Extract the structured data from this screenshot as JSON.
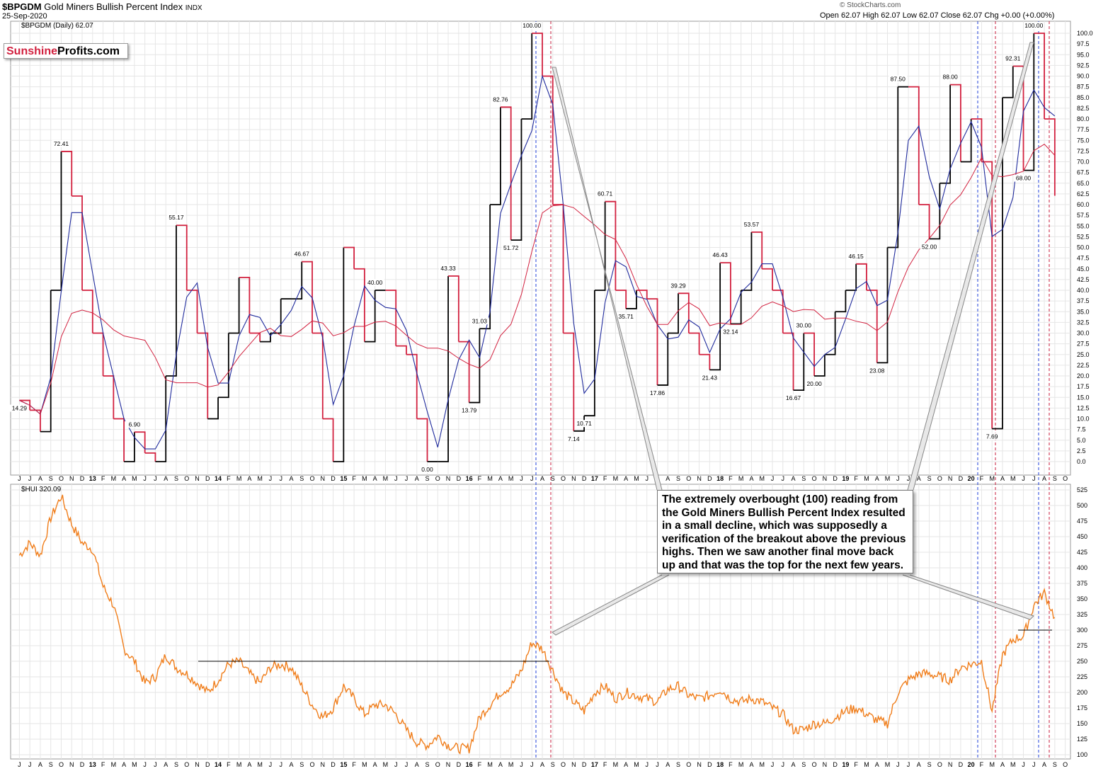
{
  "header": {
    "symbol": "$BPGDM",
    "name": "Gold Miners Bullish Percent Index",
    "exchange": "INDX",
    "date": "25-Sep-2020",
    "ohlc": "Open 62.07  High 62.07  Low 62.07  Close 62.07  Chg +0.00 (+0.00%)",
    "watermark": "© StockCharts.com",
    "upper_legend": "$BPGDM (Daily) 62.07",
    "lower_legend": "$HUI 320.09"
  },
  "logo": {
    "part1": "Sunshine",
    "part2": "Profits.com"
  },
  "callout": {
    "text": "The extremely overbought (100) reading from the Gold Miners Bullish Percent Index resulted in a small decline, which was supposedly a verification of the breakout above the previous highs. Then we saw another final move back up and that was the top for the next few years."
  },
  "colors": {
    "rising": "#000000",
    "falling": "#d2213f",
    "ma_short": "#1f2a9c",
    "ma_long": "#d2213f",
    "hui": "#f07d1a",
    "vline_blue": "#1f3fd8",
    "vline_red": "#c81e3c"
  },
  "axis": {
    "months": [
      "J",
      "J",
      "A",
      "S",
      "O",
      "N",
      "D",
      "13",
      "F",
      "M",
      "A",
      "M",
      "J",
      "J",
      "A",
      "S",
      "O",
      "N",
      "D",
      "14",
      "F",
      "M",
      "A",
      "M",
      "J",
      "J",
      "A",
      "S",
      "O",
      "N",
      "D",
      "15",
      "F",
      "M",
      "A",
      "M",
      "J",
      "J",
      "A",
      "S",
      "O",
      "N",
      "D",
      "16",
      "F",
      "M",
      "A",
      "M",
      "J",
      "J",
      "A",
      "S",
      "O",
      "N",
      "D",
      "17",
      "F",
      "M",
      "A",
      "M",
      "J",
      "J",
      "A",
      "S",
      "O",
      "N",
      "D",
      "18",
      "F",
      "M",
      "A",
      "M",
      "J",
      "J",
      "A",
      "S",
      "O",
      "N",
      "D",
      "19",
      "F",
      "M",
      "A",
      "M",
      "J",
      "J",
      "A",
      "S",
      "O",
      "N",
      "D",
      "20",
      "F",
      "M",
      "A",
      "M",
      "J",
      "J",
      "A",
      "S",
      "O"
    ],
    "upper_ticks": [
      "0.0",
      "2.5",
      "5.0",
      "7.5",
      "10.0",
      "12.5",
      "15.0",
      "17.5",
      "20.0",
      "22.5",
      "25.0",
      "27.5",
      "30.0",
      "32.5",
      "35.0",
      "37.5",
      "40.0",
      "42.5",
      "45.0",
      "47.5",
      "50.0",
      "52.5",
      "55.0",
      "57.5",
      "60.0",
      "62.5",
      "65.0",
      "67.5",
      "70.0",
      "72.5",
      "75.0",
      "77.5",
      "80.0",
      "82.5",
      "85.0",
      "87.5",
      "90.0",
      "92.5",
      "95.0",
      "97.5",
      "100.0"
    ],
    "lower_ticks": [
      "100",
      "125",
      "150",
      "175",
      "200",
      "225",
      "250",
      "275",
      "300",
      "325",
      "350",
      "375",
      "400",
      "425",
      "450",
      "475",
      "500",
      "525"
    ]
  },
  "chart_data": [
    {
      "type": "line",
      "title": "$BPGDM Gold Miners Bullish Percent Index",
      "ylim": [
        0,
        100
      ],
      "x_start": "2012-06",
      "x_end": "2020-09-25",
      "series": [
        {
          "name": "$BPGDM (Daily)",
          "points": [
            [
              "2012-06",
              14.29
            ],
            [
              "2012-07",
              12
            ],
            [
              "2012-08",
              7
            ],
            [
              "2012-09",
              40
            ],
            [
              "2012-10",
              72.41
            ],
            [
              "2012-11",
              62
            ],
            [
              "2012-12",
              40
            ],
            [
              "2013-01",
              30
            ],
            [
              "2013-02",
              20
            ],
            [
              "2013-03",
              10
            ],
            [
              "2013-04",
              0
            ],
            [
              "2013-05",
              6.9
            ],
            [
              "2013-06",
              2
            ],
            [
              "2013-07",
              0
            ],
            [
              "2013-08",
              20
            ],
            [
              "2013-09",
              55.17
            ],
            [
              "2013-10",
              40
            ],
            [
              "2013-11",
              30
            ],
            [
              "2013-12",
              10
            ],
            [
              "2014-01",
              15
            ],
            [
              "2014-02",
              30
            ],
            [
              "2014-03",
              43
            ],
            [
              "2014-04",
              30
            ],
            [
              "2014-05",
              28
            ],
            [
              "2014-06",
              30
            ],
            [
              "2014-07",
              38
            ],
            [
              "2014-08",
              38
            ],
            [
              "2014-09",
              46.67
            ],
            [
              "2014-10",
              30
            ],
            [
              "2014-11",
              10
            ],
            [
              "2014-12",
              0
            ],
            [
              "2015-01",
              50
            ],
            [
              "2015-02",
              45
            ],
            [
              "2015-03",
              28
            ],
            [
              "2015-04",
              40
            ],
            [
              "2015-05",
              40
            ],
            [
              "2015-06",
              27
            ],
            [
              "2015-07",
              25
            ],
            [
              "2015-08",
              10
            ],
            [
              "2015-09",
              0
            ],
            [
              "2015-10",
              0
            ],
            [
              "2015-11",
              43.33
            ],
            [
              "2015-12",
              28
            ],
            [
              "2016-01",
              13.79
            ],
            [
              "2016-02",
              31.03
            ],
            [
              "2016-03",
              60
            ],
            [
              "2016-04",
              82.76
            ],
            [
              "2016-05",
              51.72
            ],
            [
              "2016-06",
              80
            ],
            [
              "2016-07",
              100
            ],
            [
              "2016-08",
              90
            ],
            [
              "2016-09",
              60
            ],
            [
              "2016-10",
              30
            ],
            [
              "2016-11",
              7.14
            ],
            [
              "2016-12",
              10.71
            ],
            [
              "2017-01",
              40
            ],
            [
              "2017-02",
              60.71
            ],
            [
              "2017-03",
              40
            ],
            [
              "2017-04",
              35.71
            ],
            [
              "2017-05",
              40
            ],
            [
              "2017-06",
              38
            ],
            [
              "2017-07",
              17.86
            ],
            [
              "2017-08",
              30
            ],
            [
              "2017-09",
              39.29
            ],
            [
              "2017-10",
              30
            ],
            [
              "2017-11",
              25
            ],
            [
              "2017-12",
              21.43
            ],
            [
              "2018-01",
              46.43
            ],
            [
              "2018-02",
              32.14
            ],
            [
              "2018-03",
              40
            ],
            [
              "2018-04",
              53.57
            ],
            [
              "2018-05",
              45
            ],
            [
              "2018-06",
              40
            ],
            [
              "2018-07",
              30
            ],
            [
              "2018-08",
              16.67
            ],
            [
              "2018-09",
              30
            ],
            [
              "2018-10",
              20
            ],
            [
              "2018-11",
              25
            ],
            [
              "2018-12",
              35
            ],
            [
              "2019-01",
              40
            ],
            [
              "2019-02",
              46.15
            ],
            [
              "2019-03",
              40
            ],
            [
              "2019-04",
              23.08
            ],
            [
              "2019-05",
              50
            ],
            [
              "2019-06",
              87.5
            ],
            [
              "2019-07",
              87.5
            ],
            [
              "2019-08",
              60
            ],
            [
              "2019-09",
              52
            ],
            [
              "2019-10",
              65
            ],
            [
              "2019-11",
              88
            ],
            [
              "2019-12",
              70
            ],
            [
              "2020-01",
              80
            ],
            [
              "2020-02",
              70
            ],
            [
              "2020-03",
              7.69
            ],
            [
              "2020-04",
              85
            ],
            [
              "2020-05",
              92.31
            ],
            [
              "2020-06",
              68
            ],
            [
              "2020-07",
              100
            ],
            [
              "2020-08",
              80
            ],
            [
              "2020-09",
              62.07
            ]
          ]
        }
      ],
      "labels": [
        "14.29",
        "72.41",
        "6.90",
        "55.17",
        "46.67",
        "40.00",
        "43.33",
        "0.00",
        "31.03",
        "13.79",
        "82.76",
        "51.72",
        "100.00",
        "7.14",
        "10.71",
        "60.71",
        "35.71",
        "17.86",
        "39.29",
        "21.43",
        "46.43",
        "32.14",
        "53.57",
        "16.67",
        "30.00",
        "20.00",
        "46.15",
        "23.08",
        "87.50",
        "52.00",
        "88.00",
        "7.69",
        "92.31",
        "68.00",
        "100.00"
      ]
    },
    {
      "type": "line",
      "title": "$HUI",
      "ylim": [
        100,
        525
      ],
      "series": [
        {
          "name": "$HUI",
          "points": [
            [
              "2012-06",
              420
            ],
            [
              "2012-07",
              440
            ],
            [
              "2012-08",
              420
            ],
            [
              "2012-09",
              480
            ],
            [
              "2012-10",
              515
            ],
            [
              "2012-11",
              470
            ],
            [
              "2012-12",
              440
            ],
            [
              "2013-01",
              430
            ],
            [
              "2013-02",
              370
            ],
            [
              "2013-03",
              340
            ],
            [
              "2013-04",
              270
            ],
            [
              "2013-05",
              250
            ],
            [
              "2013-06",
              215
            ],
            [
              "2013-07",
              225
            ],
            [
              "2013-08",
              260
            ],
            [
              "2013-09",
              240
            ],
            [
              "2013-10",
              230
            ],
            [
              "2013-11",
              215
            ],
            [
              "2013-12",
              200
            ],
            [
              "2014-01",
              220
            ],
            [
              "2014-02",
              245
            ],
            [
              "2014-03",
              250
            ],
            [
              "2014-04",
              230
            ],
            [
              "2014-05",
              215
            ],
            [
              "2014-06",
              240
            ],
            [
              "2014-07",
              245
            ],
            [
              "2014-08",
              240
            ],
            [
              "2014-09",
              210
            ],
            [
              "2014-10",
              180
            ],
            [
              "2014-11",
              160
            ],
            [
              "2014-12",
              175
            ],
            [
              "2015-01",
              210
            ],
            [
              "2015-02",
              190
            ],
            [
              "2015-03",
              165
            ],
            [
              "2015-04",
              180
            ],
            [
              "2015-05",
              180
            ],
            [
              "2015-06",
              165
            ],
            [
              "2015-07",
              140
            ],
            [
              "2015-08",
              120
            ],
            [
              "2015-09",
              115
            ],
            [
              "2015-10",
              130
            ],
            [
              "2015-11",
              115
            ],
            [
              "2015-12",
              110
            ],
            [
              "2016-01",
              110
            ],
            [
              "2016-02",
              160
            ],
            [
              "2016-03",
              180
            ],
            [
              "2016-04",
              200
            ],
            [
              "2016-05",
              210
            ],
            [
              "2016-06",
              235
            ],
            [
              "2016-07",
              280
            ],
            [
              "2016-08",
              270
            ],
            [
              "2016-09",
              235
            ],
            [
              "2016-10",
              200
            ],
            [
              "2016-11",
              185
            ],
            [
              "2016-12",
              170
            ],
            [
              "2017-01",
              200
            ],
            [
              "2017-02",
              210
            ],
            [
              "2017-03",
              190
            ],
            [
              "2017-04",
              200
            ],
            [
              "2017-05",
              195
            ],
            [
              "2017-06",
              190
            ],
            [
              "2017-07",
              185
            ],
            [
              "2017-08",
              205
            ],
            [
              "2017-09",
              210
            ],
            [
              "2017-10",
              195
            ],
            [
              "2017-11",
              190
            ],
            [
              "2017-12",
              195
            ],
            [
              "2018-01",
              205
            ],
            [
              "2018-02",
              190
            ],
            [
              "2018-03",
              185
            ],
            [
              "2018-04",
              190
            ],
            [
              "2018-05",
              185
            ],
            [
              "2018-06",
              175
            ],
            [
              "2018-07",
              165
            ],
            [
              "2018-08",
              140
            ],
            [
              "2018-09",
              140
            ],
            [
              "2018-10",
              150
            ],
            [
              "2018-11",
              150
            ],
            [
              "2018-12",
              160
            ],
            [
              "2019-01",
              170
            ],
            [
              "2019-02",
              175
            ],
            [
              "2019-03",
              165
            ],
            [
              "2019-04",
              155
            ],
            [
              "2019-05",
              150
            ],
            [
              "2019-06",
              200
            ],
            [
              "2019-07",
              220
            ],
            [
              "2019-08",
              230
            ],
            [
              "2019-09",
              230
            ],
            [
              "2019-10",
              225
            ],
            [
              "2019-11",
              220
            ],
            [
              "2019-12",
              240
            ],
            [
              "2020-01",
              245
            ],
            [
              "2020-02",
              250
            ],
            [
              "2020-03",
              170
            ],
            [
              "2020-04",
              260
            ],
            [
              "2020-05",
              285
            ],
            [
              "2020-06",
              290
            ],
            [
              "2020-07",
              340
            ],
            [
              "2020-08",
              360
            ],
            [
              "2020-09",
              320.09
            ]
          ]
        }
      ]
    }
  ]
}
